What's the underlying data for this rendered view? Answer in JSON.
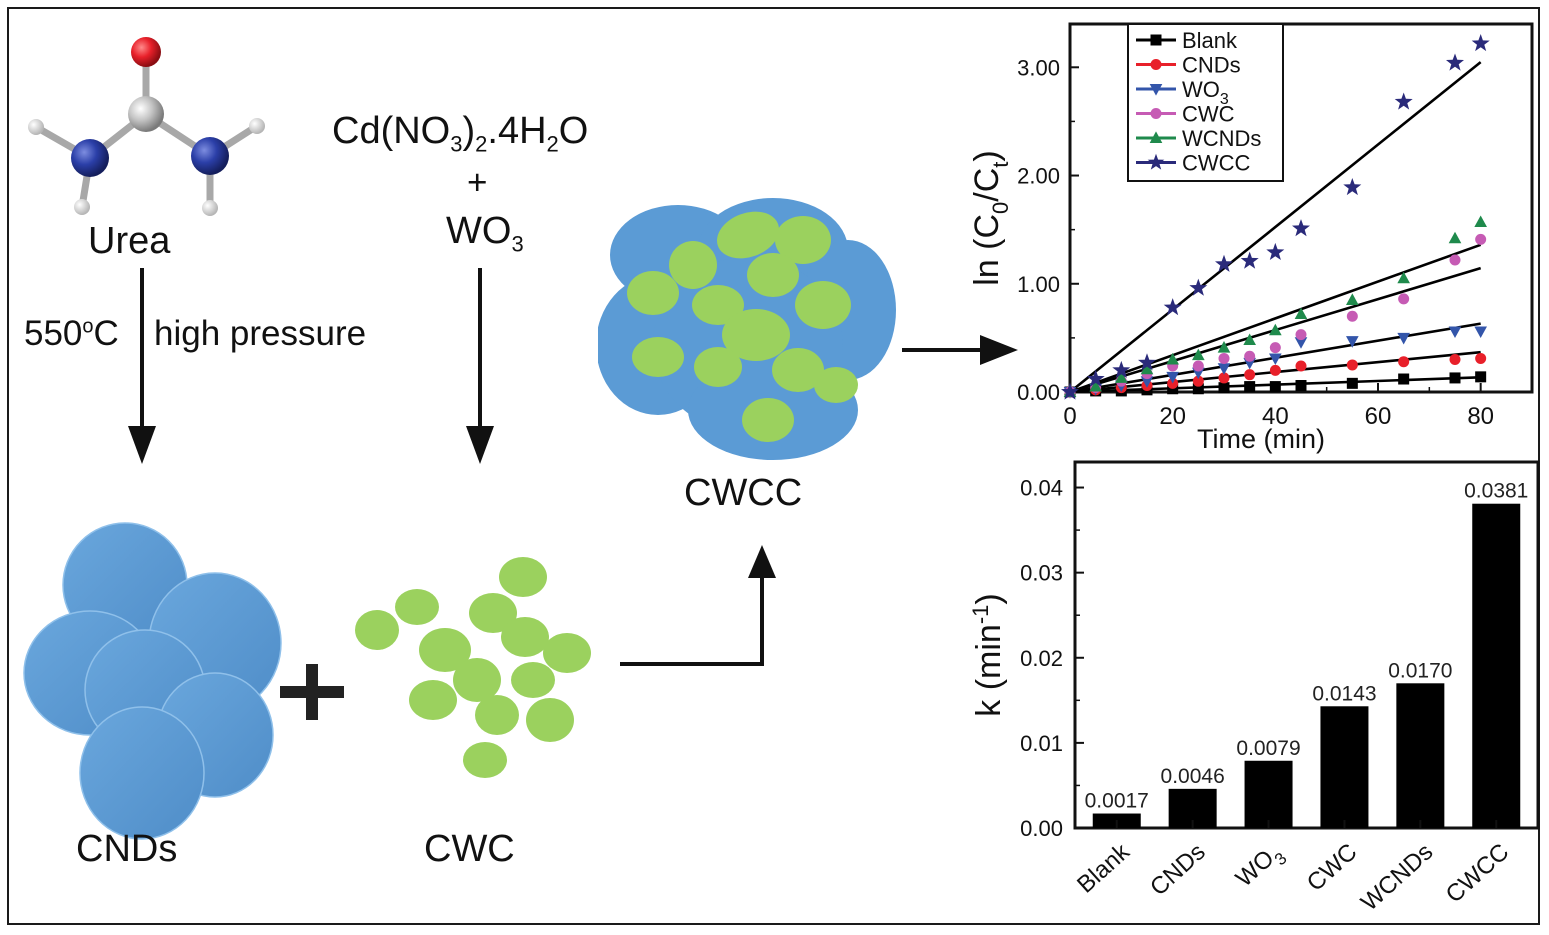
{
  "scheme": {
    "urea_label": "Urea",
    "condition_temp": "550",
    "condition_temp_sup": "o",
    "condition_temp_unit": "C",
    "condition_pressure": "high pressure",
    "precursor_main": "Cd(NO",
    "precursor_sub1": "3",
    "precursor_mid": ")",
    "precursor_sub2": "2",
    "precursor_end": ".4H",
    "precursor_sub3": "2",
    "precursor_tail": "O",
    "plus_small": "+",
    "wo_main": "WO",
    "wo_sub": "3",
    "cnds_label": "CNDs",
    "cwc_label": "CWC",
    "cwcc_label": "CWCC",
    "plus_big": "+",
    "colors": {
      "blue": "#5b9bd5",
      "green": "#9bd15e",
      "red_atom": "#e8202a",
      "n_atom": "#2b3fa8",
      "c_atom": "#b9b9b9"
    }
  },
  "chart_data": [
    {
      "type": "scatter",
      "title": "",
      "xlabel": "Time (min)",
      "ylabel_main": "ln (C",
      "ylabel_sub0": "0",
      "ylabel_mid": "/C",
      "ylabel_subt": "t",
      "ylabel_end": ")",
      "xlim": [
        0,
        90
      ],
      "ylim": [
        0,
        3.4
      ],
      "xticks": [
        0,
        20,
        40,
        60,
        80
      ],
      "xtick_labels": [
        "0",
        "20",
        "40",
        "60",
        "80"
      ],
      "yticks": [
        0,
        1,
        2,
        3
      ],
      "ytick_labels": [
        "0.00",
        "1.00",
        "2.00",
        "3.00"
      ],
      "legend_position": "top-left",
      "x": [
        0,
        5,
        10,
        15,
        20,
        25,
        30,
        35,
        40,
        45,
        55,
        65,
        75,
        80
      ],
      "series": [
        {
          "name": "Blank",
          "marker": "square",
          "color": "#000000",
          "slope": 0.0017,
          "values": [
            0,
            0.01,
            0.01,
            0.02,
            0.03,
            0.03,
            0.04,
            0.05,
            0.05,
            0.06,
            0.08,
            0.12,
            0.13,
            0.14
          ]
        },
        {
          "name": "CNDs",
          "marker": "circle",
          "color": "#e8202a",
          "slope": 0.0046,
          "values": [
            0,
            0.02,
            0.04,
            0.06,
            0.08,
            0.1,
            0.13,
            0.16,
            0.2,
            0.24,
            0.25,
            0.28,
            0.3,
            0.31
          ]
        },
        {
          "name": "WO",
          "name_sub": "3",
          "marker": "triangle-down",
          "color": "#3355aa",
          "slope": 0.0079,
          "values": [
            0,
            0.03,
            0.06,
            0.1,
            0.14,
            0.18,
            0.22,
            0.27,
            0.31,
            0.46,
            0.47,
            0.5,
            0.56,
            0.56
          ]
        },
        {
          "name": "CWC",
          "marker": "circle",
          "color": "#c65bb4",
          "slope": 0.0143,
          "values": [
            0,
            0.04,
            0.1,
            0.17,
            0.24,
            0.24,
            0.31,
            0.33,
            0.41,
            0.53,
            0.7,
            0.86,
            1.22,
            1.41
          ]
        },
        {
          "name": "WCNDs",
          "marker": "triangle-up",
          "color": "#1f8a4c",
          "slope": 0.017,
          "values": [
            0,
            0.05,
            0.13,
            0.21,
            0.3,
            0.34,
            0.41,
            0.48,
            0.57,
            0.72,
            0.85,
            1.05,
            1.42,
            1.57
          ]
        },
        {
          "name": "CWCC",
          "marker": "star",
          "color": "#2a2a7a",
          "slope": 0.0381,
          "values": [
            0,
            0.12,
            0.2,
            0.27,
            0.78,
            0.96,
            1.18,
            1.21,
            1.29,
            1.51,
            1.89,
            2.68,
            3.04,
            3.22
          ]
        }
      ]
    },
    {
      "type": "bar",
      "title": "",
      "ylabel_main": "k (min",
      "ylabel_sup": "-1",
      "ylabel_end": ")",
      "ylim": [
        0,
        0.043
      ],
      "yticks": [
        0,
        0.01,
        0.02,
        0.03,
        0.04
      ],
      "ytick_labels": [
        "0.00",
        "0.01",
        "0.02",
        "0.03",
        "0.04"
      ],
      "categories": [
        "Blank",
        "CNDs",
        "WO",
        "CWC",
        "WCNDs",
        "CWCC"
      ],
      "category_subs": [
        "",
        "",
        "3",
        "",
        "",
        ""
      ],
      "values": [
        0.0017,
        0.0046,
        0.0079,
        0.0143,
        0.017,
        0.0381
      ],
      "value_labels": [
        "0.0017",
        "0.0046",
        "0.0079",
        "0.0143",
        "0.0170",
        "0.0381"
      ],
      "bar_color": "#000000"
    }
  ]
}
